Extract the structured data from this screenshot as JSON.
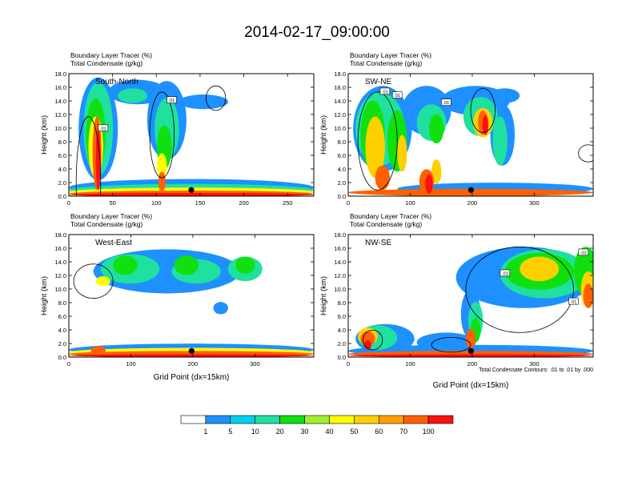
{
  "figure": {
    "title": "2014-02-17_09:00:00",
    "footnote": "Total Condensate Contours: .01 to .01 by .000"
  },
  "colors": {
    "scale": [
      "#ffffff",
      "#1e90ff",
      "#00d0f0",
      "#20e0a0",
      "#10e010",
      "#a0f030",
      "#ffff00",
      "#ffd000",
      "#ffa000",
      "#ff6000",
      "#ff1010"
    ]
  },
  "chart_data": [
    {
      "type": "heatmap",
      "title": "Boundary Layer Tracer   (%)",
      "subtitle": "Total Condensate   (g/kg)",
      "panel_label": "South-North",
      "xlabel": "",
      "ylabel": "Height (km)",
      "xlim": [
        0,
        280
      ],
      "ylim": [
        0,
        18
      ],
      "xticks": [
        "0",
        "50",
        "100",
        "150",
        "200",
        "250"
      ],
      "xtick_values": [
        0,
        50,
        100,
        150,
        200,
        250
      ],
      "yticks": [
        "0.0",
        "2.0",
        "4.0",
        "6.0",
        "8.0",
        "10.0",
        "12.0",
        "14.0",
        "16.0",
        "18.0"
      ],
      "contour_labels": [
        ".01",
        ".01"
      ],
      "marker_x": 140
    },
    {
      "type": "heatmap",
      "title": "Boundary Layer Tracer   (%)",
      "subtitle": "Total Condensate   (g/kg)",
      "panel_label": "SW-NE",
      "xlabel": "",
      "ylabel": "Height (km)",
      "xlim": [
        0,
        395
      ],
      "ylim": [
        0,
        18
      ],
      "xticks": [
        "0",
        "100",
        "200",
        "300"
      ],
      "xtick_values": [
        0,
        100,
        200,
        300
      ],
      "yticks": [
        "0.0",
        "2.0",
        "4.0",
        "6.0",
        "8.0",
        "10.0",
        "12.0",
        "14.0",
        "16.0",
        "18.0"
      ],
      "contour_labels": [
        ".01",
        ".01",
        ".01"
      ],
      "marker_x": 198
    },
    {
      "type": "heatmap",
      "title": "Boundary Layer Tracer   (%)",
      "subtitle": "Total Condensate   (g/kg)",
      "panel_label": "West-East",
      "xlabel": "Grid Point (dx=15km)",
      "ylabel": "Height (km)",
      "xlim": [
        0,
        395
      ],
      "ylim": [
        0,
        18
      ],
      "xticks": [
        "0",
        "100",
        "200",
        "300"
      ],
      "xtick_values": [
        0,
        100,
        200,
        300
      ],
      "yticks": [
        "0.0",
        "2.0",
        "4.0",
        "6.0",
        "8.0",
        "10.0",
        "12.0",
        "14.0",
        "16.0",
        "18.0"
      ],
      "contour_labels": [],
      "marker_x": 198
    },
    {
      "type": "heatmap",
      "title": "Boundary Layer Tracer   (%)",
      "subtitle": "Total Condensate   (g/kg)",
      "panel_label": "NW-SE",
      "xlabel": "Grid Point (dx=15km)",
      "ylabel": "Height (km)",
      "xlim": [
        0,
        395
      ],
      "ylim": [
        0,
        18
      ],
      "xticks": [
        "0",
        "100",
        "200",
        "300"
      ],
      "xtick_values": [
        0,
        100,
        200,
        300
      ],
      "yticks": [
        "0.0",
        "2.0",
        "4.0",
        "6.0",
        "8.0",
        "10.0",
        "12.0",
        "14.0",
        "16.0",
        "18.0"
      ],
      "contour_labels": [
        ".01",
        ".01",
        ".01"
      ],
      "marker_x": 198
    }
  ],
  "colorbar": {
    "labels": [
      "1",
      "5",
      "10",
      "20",
      "30",
      "40",
      "50",
      "60",
      "70",
      "100"
    ]
  }
}
